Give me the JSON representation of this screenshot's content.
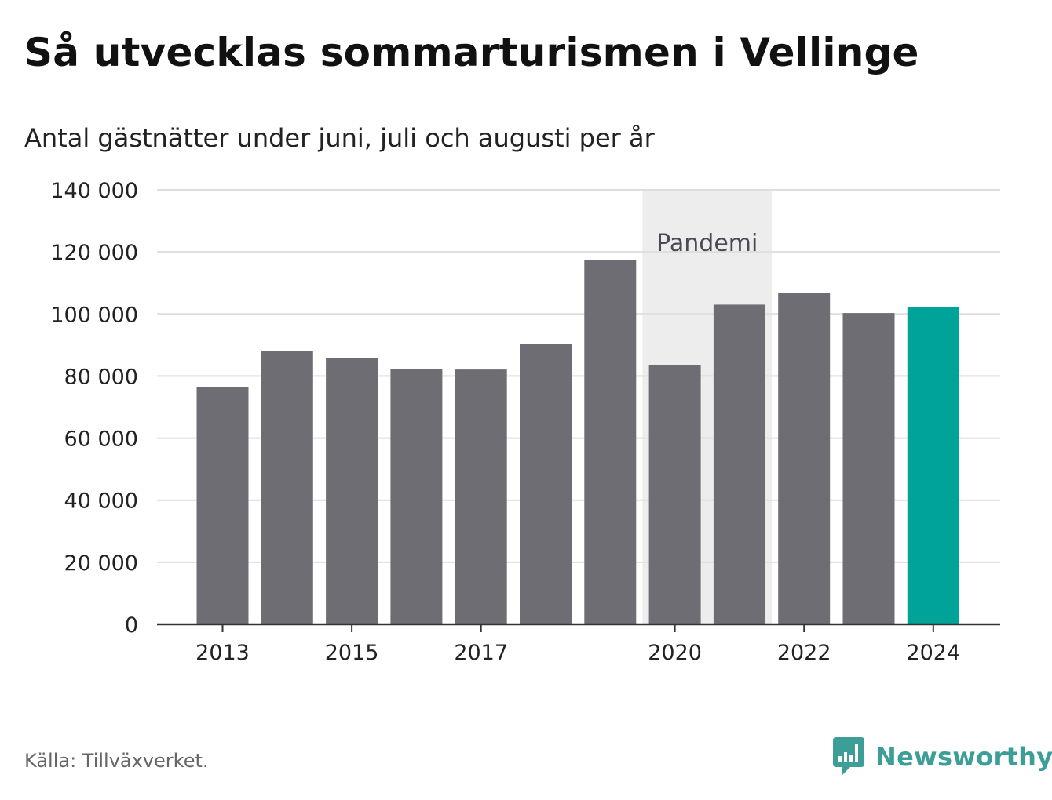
{
  "title": "Så utvecklas sommarturismen i Vellinge",
  "subtitle": "Antal gästnätter under juni, juli och augusti per år",
  "source": "Källa: Tillväxverket.",
  "brand": "Newsworthy",
  "colors": {
    "bar": "#6e6d73",
    "highlight": "#00a398",
    "shade": "#ededed",
    "grid": "#dedede",
    "axis": "#333333",
    "brand": "#3d9e97"
  },
  "chart_data": {
    "type": "bar",
    "title": "Så utvecklas sommarturismen i Vellinge",
    "subtitle": "Antal gästnätter under juni, juli och augusti per år",
    "categories": [
      "2013",
      "2014",
      "2015",
      "2016",
      "2017",
      "2018",
      "2019",
      "2020",
      "2021",
      "2022",
      "2023",
      "2024"
    ],
    "values": [
      76500,
      88000,
      85800,
      82200,
      82100,
      90400,
      117300,
      83600,
      103000,
      106800,
      100300,
      102200
    ],
    "highlight": "2024",
    "ylim": [
      0,
      140000
    ],
    "yticks": [
      0,
      20000,
      40000,
      60000,
      80000,
      100000,
      120000,
      140000
    ],
    "ytick_labels": [
      "0",
      "20 000",
      "40 000",
      "60 000",
      "80 000",
      "100 000",
      "120 000",
      "140 000"
    ],
    "xtick_labels": [
      "2013",
      "2015",
      "2017",
      "2020",
      "2022",
      "2024"
    ],
    "grid": true,
    "annotation": {
      "label": "Pandemi",
      "from": "2020",
      "to": "2021"
    }
  }
}
